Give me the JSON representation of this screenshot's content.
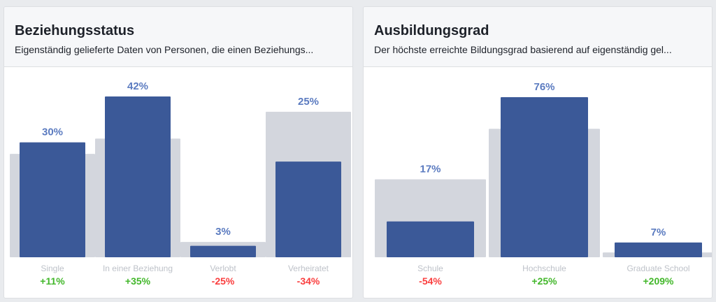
{
  "colors": {
    "bar": "#3b5998",
    "background_bar": "#d3d6dd",
    "value_label": "#5b7bc0",
    "category_label": "#bec2c9",
    "positive": "#42b72a",
    "negative": "#fa3e3e"
  },
  "cards": [
    {
      "title": "Beziehungsstatus",
      "subtitle": "Eigenständig gelieferte Daten von Personen, die einen Beziehungs..."
    },
    {
      "title": "Ausbildungsgrad",
      "subtitle": "Der höchste erreichte Bildungsgrad basierend auf eigenständig gel..."
    }
  ],
  "chart_data": [
    {
      "type": "bar",
      "title": "Beziehungsstatus",
      "categories": [
        "Single",
        "In einer Beziehung",
        "Verlobt",
        "Verheiratet"
      ],
      "values": [
        30,
        42,
        3,
        25
      ],
      "value_labels": [
        "30%",
        "42%",
        "3%",
        "25%"
      ],
      "comparison_values": [
        27,
        31,
        4,
        38
      ],
      "changes": [
        "+11%",
        "+35%",
        "-25%",
        "-34%"
      ],
      "ylim": [
        0,
        44
      ]
    },
    {
      "type": "bar",
      "title": "Ausbildungsgrad",
      "categories": [
        "Schule",
        "Hochschule",
        "Graduate School"
      ],
      "values": [
        17,
        76,
        7
      ],
      "value_labels": [
        "17%",
        "76%",
        "7%"
      ],
      "comparison_values": [
        37,
        61,
        2.3
      ],
      "changes": [
        "-54%",
        "+25%",
        "+209%"
      ],
      "ylim": [
        0,
        80
      ]
    }
  ]
}
